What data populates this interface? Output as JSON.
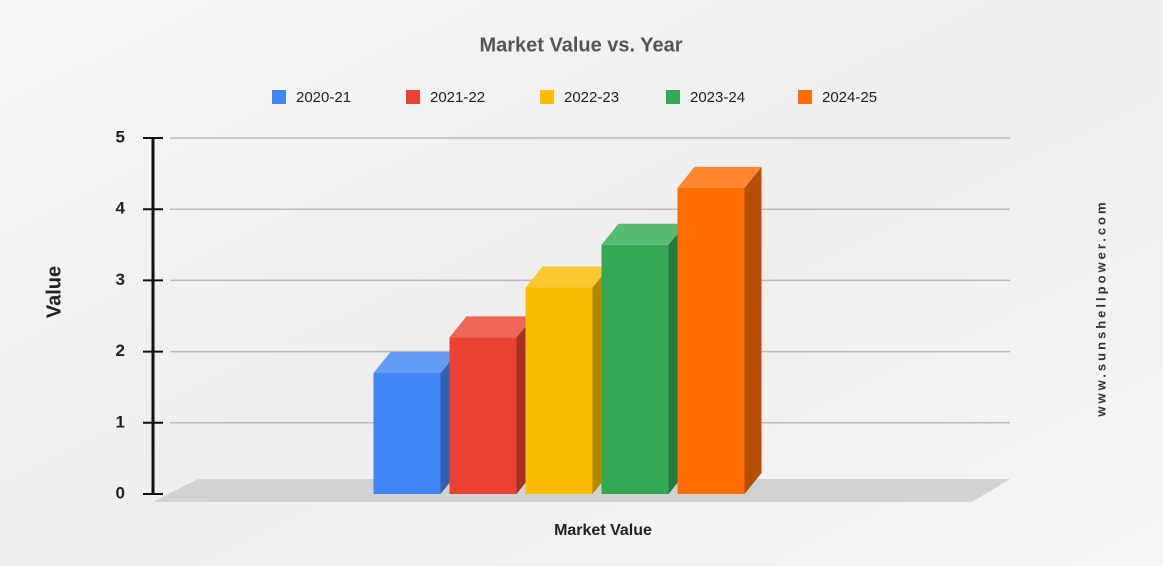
{
  "chart_data": {
    "type": "bar",
    "title": "Market Value vs. Year",
    "xlabel": "Market Value",
    "ylabel": "Value",
    "categories": [
      "Market Value"
    ],
    "series": [
      {
        "name": "2020-21",
        "color": "#4285f4",
        "values": [
          1.7
        ]
      },
      {
        "name": "2021-22",
        "color": "#ea4335",
        "values": [
          2.2
        ]
      },
      {
        "name": "2022-23",
        "color": "#fbbc04",
        "values": [
          2.9
        ]
      },
      {
        "name": "2023-24",
        "color": "#34a853",
        "values": [
          3.5
        ]
      },
      {
        "name": "2024-25",
        "color": "#ff6d01",
        "values": [
          4.3
        ]
      }
    ],
    "ylim": [
      0,
      5
    ],
    "yticks": [
      0,
      1,
      2,
      3,
      4,
      5
    ],
    "grid": true,
    "legend": "top",
    "watermark": "www.sunshellpower.com"
  }
}
